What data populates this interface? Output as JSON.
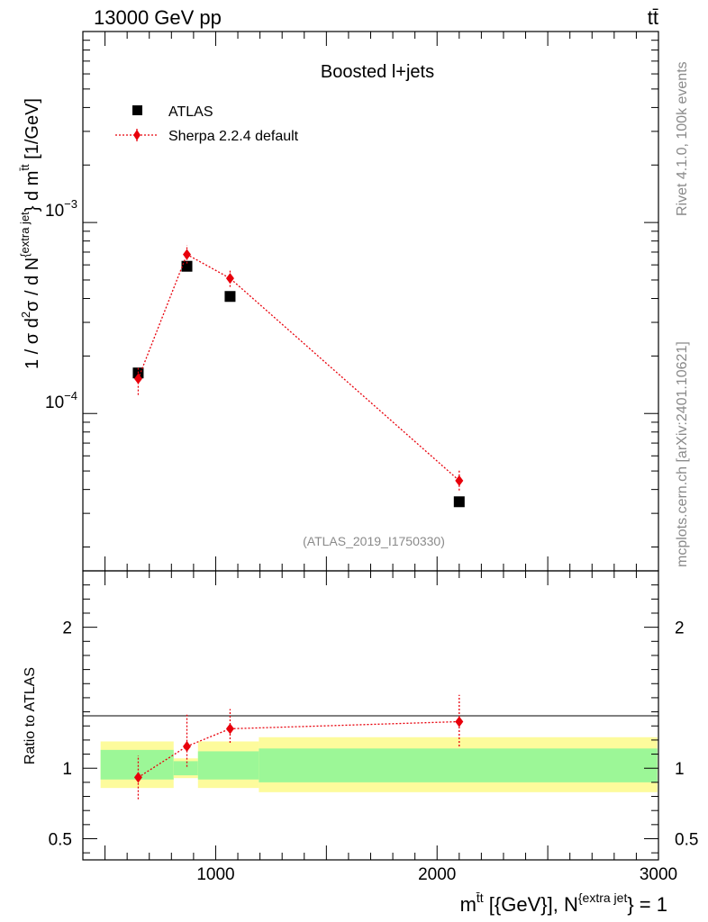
{
  "header": {
    "left": "13000 GeV pp",
    "right": "tt̄"
  },
  "side_text": {
    "rivet": "Rivet 4.1.0,  100k events",
    "source": "mcplots.cern.ch [arXiv:2401.10621]"
  },
  "chart_data": [
    {
      "type": "scatter",
      "panel": "main",
      "title": "Boosted l+jets",
      "analysis_label": "(ATLAS_2019_I1750330)",
      "ylabel_parts": {
        "a": "1 / σ d",
        "sup2": "2",
        "b": "σ / d N",
        "supjet": "{extra jet",
        "c": "} d m",
        "suptt": "t̄t",
        "d": " [1/GeV]"
      },
      "yscale": "log",
      "ylim": [
        1.5e-05,
        0.01
      ],
      "xlim": [
        400,
        3000
      ],
      "y_ticklabels": [
        {
          "value": 0.001,
          "base": "10",
          "exp": "−3"
        },
        {
          "value": 0.0001,
          "base": "10",
          "exp": "−4"
        }
      ],
      "legend": [
        {
          "label": "ATLAS",
          "marker": "square",
          "color": "#000000"
        },
        {
          "label": "Sherpa 2.2.4 default",
          "marker": "diamond",
          "color": "#e8000b"
        }
      ],
      "series": [
        {
          "name": "ATLAS",
          "x": [
            650,
            870,
            1065,
            2100
          ],
          "y": [
            0.000163,
            0.00059,
            0.00041,
            3.45e-05
          ]
        },
        {
          "name": "Sherpa 2.2.4 default",
          "x": [
            650,
            870,
            1065,
            2100
          ],
          "y": [
            0.000152,
            0.00068,
            0.00051,
            4.45e-05
          ],
          "err_low": [
            0.000125,
            0.00061,
            0.00046,
            3.95e-05
          ],
          "err_high": [
            0.000175,
            0.00076,
            0.00057,
            5.05e-05
          ]
        }
      ]
    },
    {
      "type": "scatter",
      "panel": "ratio",
      "ylabel": "Ratio to ATLAS",
      "xlabel_parts": {
        "m": "m",
        "sup1": "t̄t",
        "mid": " [{GeV}], N",
        "sup2": "{extra jet",
        "end": "} = 1"
      },
      "ylim": [
        0.35,
        2.4
      ],
      "xlim": [
        400,
        3000
      ],
      "y_ticks": [
        0.5,
        1,
        2
      ],
      "y_ticklabels": [
        "0.5",
        "1",
        "2"
      ],
      "x_ticks": [
        1000,
        2000,
        3000
      ],
      "x_ticklabels": [
        "1000",
        "2000",
        "3000"
      ],
      "bands": [
        {
          "x0": 480,
          "x1": 810,
          "outer": [
            0.86,
            1.19
          ],
          "inner": [
            0.92,
            1.13
          ]
        },
        {
          "x0": 810,
          "x1": 920,
          "outer": [
            0.93,
            1.07
          ],
          "inner": [
            0.95,
            1.05
          ]
        },
        {
          "x0": 920,
          "x1": 1195,
          "outer": [
            0.86,
            1.19
          ],
          "inner": [
            0.92,
            1.12
          ]
        },
        {
          "x0": 1195,
          "x1": 2995,
          "outer": [
            0.83,
            1.22
          ],
          "inner": [
            0.9,
            1.14
          ]
        }
      ],
      "band_colors": {
        "outer": "#fdfb9c",
        "inner": "#9cf797"
      },
      "series": [
        {
          "name": "Sherpa 2.2.4 default / ATLAS",
          "x": [
            650,
            870,
            1065,
            2100
          ],
          "y": [
            0.935,
            1.155,
            1.28,
            1.33
          ],
          "err_low": [
            0.78,
            1.01,
            1.18,
            1.155
          ],
          "err_high": [
            1.09,
            1.38,
            1.42,
            1.52
          ]
        }
      ]
    }
  ]
}
